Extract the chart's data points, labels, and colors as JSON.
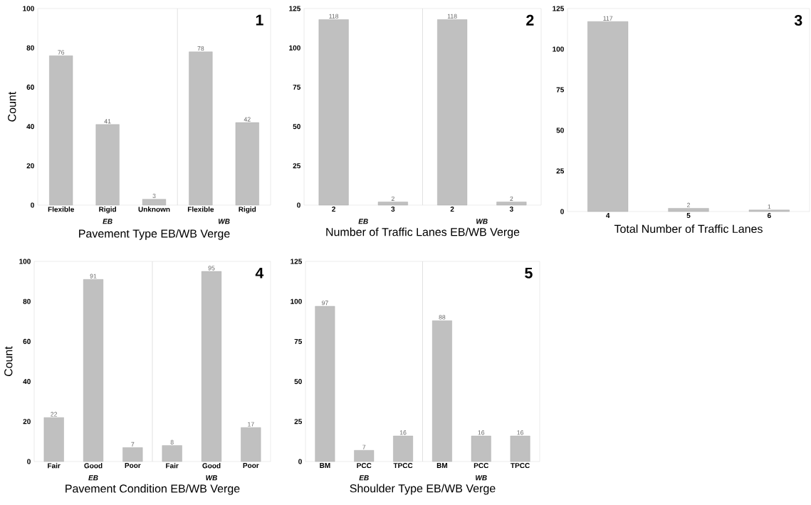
{
  "chart_data": [
    {
      "type": "bar",
      "xlabel": "Pavement Type EB/WB Verge",
      "ylabel": "Count",
      "categories": [
        "Flexible",
        "Rigid",
        "Unknown",
        "Flexible",
        "Rigid"
      ],
      "values": [
        76,
        41,
        3,
        78,
        42
      ],
      "color": "#c0c0c0",
      "ylim": [
        0,
        100
      ],
      "yticks": [
        0,
        20,
        40,
        60,
        80,
        100
      ],
      "data_labels": true,
      "grid": false,
      "annotations": [
        "1",
        "EB",
        "WB"
      ]
    },
    {
      "type": "bar",
      "xlabel": "Number of Traffic Lanes EB/WB Verge",
      "categories": [
        "2",
        "3",
        "2",
        "3"
      ],
      "values": [
        118,
        2,
        118,
        2
      ],
      "color": "#c0c0c0",
      "ylim": [
        0,
        125
      ],
      "yticks": [
        0,
        25,
        50,
        75,
        100,
        125
      ],
      "data_labels": true,
      "grid": false,
      "annotations": [
        "2",
        "EB",
        "WB"
      ]
    },
    {
      "type": "bar",
      "xlabel": "Total Number of Traffic Lanes",
      "categories": [
        "4",
        "5",
        "6"
      ],
      "values": [
        117,
        2,
        1
      ],
      "color": "#c0c0c0",
      "ylim": [
        0,
        125
      ],
      "yticks": [
        0,
        25,
        50,
        75,
        100,
        125
      ],
      "data_labels": true,
      "grid": false,
      "annotations": [
        "3"
      ]
    },
    {
      "type": "bar",
      "xlabel": "Pavement Condition EB/WB Verge",
      "ylabel": "Count",
      "categories": [
        "Fair",
        "Good",
        "Poor",
        "Fair",
        "Good",
        "Poor"
      ],
      "values": [
        22,
        91,
        7,
        8,
        95,
        17
      ],
      "color": "#c0c0c0",
      "ylim": [
        0,
        100
      ],
      "yticks": [
        0,
        20,
        40,
        60,
        80,
        100
      ],
      "data_labels": true,
      "grid": false,
      "annotations": [
        "4",
        "EB",
        "WB"
      ]
    },
    {
      "type": "bar",
      "xlabel": "Shoulder Type EB/WB Verge",
      "categories": [
        "BM",
        "PCC",
        "TPCC",
        "BM",
        "PCC",
        "TPCC"
      ],
      "values": [
        97,
        7,
        16,
        88,
        16,
        16
      ],
      "color": "#c0c0c0",
      "ylim": [
        0,
        125
      ],
      "yticks": [
        0,
        25,
        50,
        75,
        100,
        125
      ],
      "data_labels": true,
      "grid": false,
      "annotations": [
        "5",
        "EB",
        "WB"
      ]
    }
  ]
}
